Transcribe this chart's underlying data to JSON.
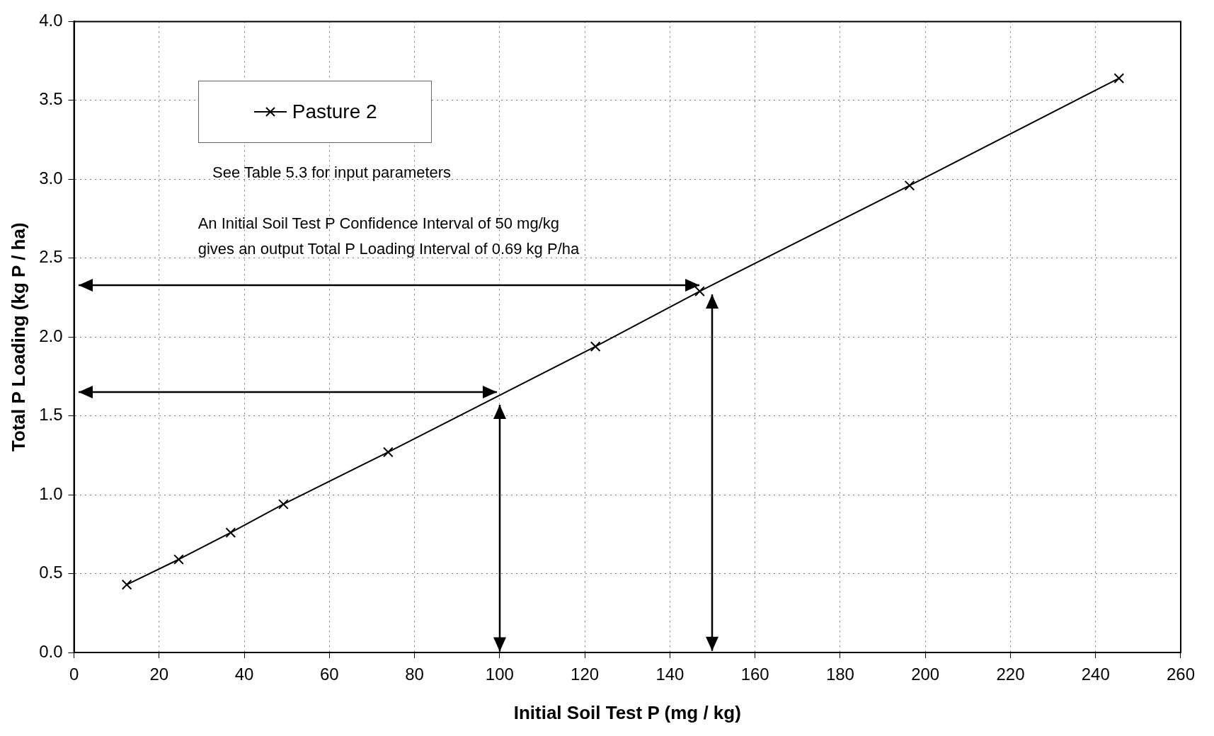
{
  "chart_data": {
    "type": "line",
    "xlabel": "Initial Soil Test P (mg / kg)",
    "ylabel": "Total P Loading (kg P / ha)",
    "x": [
      12.4,
      24.6,
      36.8,
      49.2,
      73.8,
      122.5,
      147,
      196.3,
      245.5
    ],
    "series": [
      {
        "name": "Pasture 2",
        "color": "#000000",
        "values": [
          0.43,
          0.59,
          0.76,
          0.94,
          1.27,
          1.94,
          2.29,
          2.96,
          3.64
        ]
      }
    ],
    "xlim": [
      0,
      260
    ],
    "xticks": [
      0,
      20,
      40,
      60,
      80,
      100,
      120,
      140,
      160,
      180,
      200,
      220,
      240,
      260
    ],
    "ylim": [
      0,
      4
    ],
    "yticks": [
      {
        "value": 0,
        "label": "0.0"
      },
      {
        "value": 0.5,
        "label": "0.5"
      },
      {
        "value": 1,
        "label": "1.0"
      },
      {
        "value": 1.5,
        "label": "1.5"
      },
      {
        "value": 2,
        "label": "2.0"
      },
      {
        "value": 2.5,
        "label": "2.5"
      },
      {
        "value": 3,
        "label": "3.0"
      },
      {
        "value": 3.5,
        "label": "3.5"
      },
      {
        "value": 4,
        "label": "4.0"
      }
    ],
    "grid": true,
    "legend": "top left",
    "marker": "cross",
    "line_style": "solid",
    "annotations": [
      "See Table 5.3 for input parameters",
      "An Initial Soil Test P Confidence Interval of 50 mg/kg\ngives an output Total P Loading Interval of 0.69 kg P/ha"
    ]
  }
}
